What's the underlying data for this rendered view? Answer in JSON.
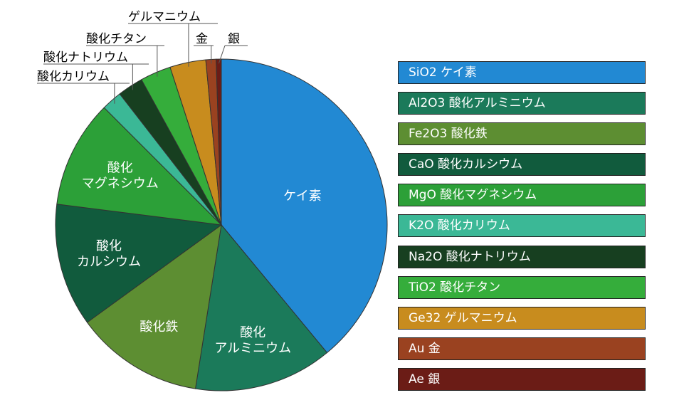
{
  "chart_data": {
    "type": "pie",
    "title": "",
    "start_angle_deg": 0,
    "direction": "clockwise",
    "slices": [
      {
        "key": "sio2",
        "label": "ケイ素",
        "value": 39.0,
        "color": "#2289d3",
        "label_mode": "inside",
        "inside_lines": [
          "ケイ素"
        ]
      },
      {
        "key": "al2o3",
        "label": "酸化アルミニウム",
        "value": 13.5,
        "color": "#1b7a5a",
        "label_mode": "inside",
        "inside_lines": [
          "酸化",
          "アルミニウム"
        ]
      },
      {
        "key": "fe2o3",
        "label": "酸化鉄",
        "value": 12.5,
        "color": "#5d8e32",
        "label_mode": "inside",
        "inside_lines": [
          "酸化鉄"
        ]
      },
      {
        "key": "cao",
        "label": "酸化カルシウム",
        "value": 12.0,
        "color": "#115b3d",
        "label_mode": "inside",
        "inside_lines": [
          "酸化",
          "カルシウム"
        ]
      },
      {
        "key": "mgo",
        "label": "酸化マグネシウム",
        "value": 10.5,
        "color": "#2ca038",
        "label_mode": "inside",
        "inside_lines": [
          "酸化",
          "マグネシウム"
        ]
      },
      {
        "key": "k2o",
        "label": "酸化カリウム",
        "value": 2.0,
        "color": "#3bb896",
        "label_mode": "callout"
      },
      {
        "key": "na2o",
        "label": "酸化ナトリウム",
        "value": 2.5,
        "color": "#173f20",
        "label_mode": "callout"
      },
      {
        "key": "tio2",
        "label": "酸化チタン",
        "value": 3.0,
        "color": "#35ad3b",
        "label_mode": "callout"
      },
      {
        "key": "ge",
        "label": "ゲルマニウム",
        "value": 3.5,
        "color": "#c88c1e",
        "label_mode": "callout"
      },
      {
        "key": "au",
        "label": "金",
        "value": 1.0,
        "color": "#9a4220",
        "label_mode": "callout"
      },
      {
        "key": "ag",
        "label": "銀",
        "value": 0.5,
        "color": "#6b1c16",
        "label_mode": "callout"
      }
    ],
    "legend": [
      {
        "text": "SiO2  ケイ素",
        "color": "#2289d3"
      },
      {
        "text": "Al2O3  酸化アルミニウム",
        "color": "#1b7a5a"
      },
      {
        "text": "Fe2O3   酸化鉄",
        "color": "#5d8e32"
      },
      {
        "text": "CaO   酸化カルシウム",
        "color": "#115b3d"
      },
      {
        "text": "MgO   酸化マグネシウム",
        "color": "#2ca038"
      },
      {
        "text": "K2O   酸化カリウム",
        "color": "#3bb896"
      },
      {
        "text": "Na2O   酸化ナトリウム",
        "color": "#173f20"
      },
      {
        "text": "TiO2   酸化チタン",
        "color": "#35ad3b"
      },
      {
        "text": "Ge32   ゲルマニウム",
        "color": "#c88c1e"
      },
      {
        "text": "Au   金",
        "color": "#9a4220"
      },
      {
        "text": "Ae   銀",
        "color": "#6b1c16"
      }
    ]
  }
}
